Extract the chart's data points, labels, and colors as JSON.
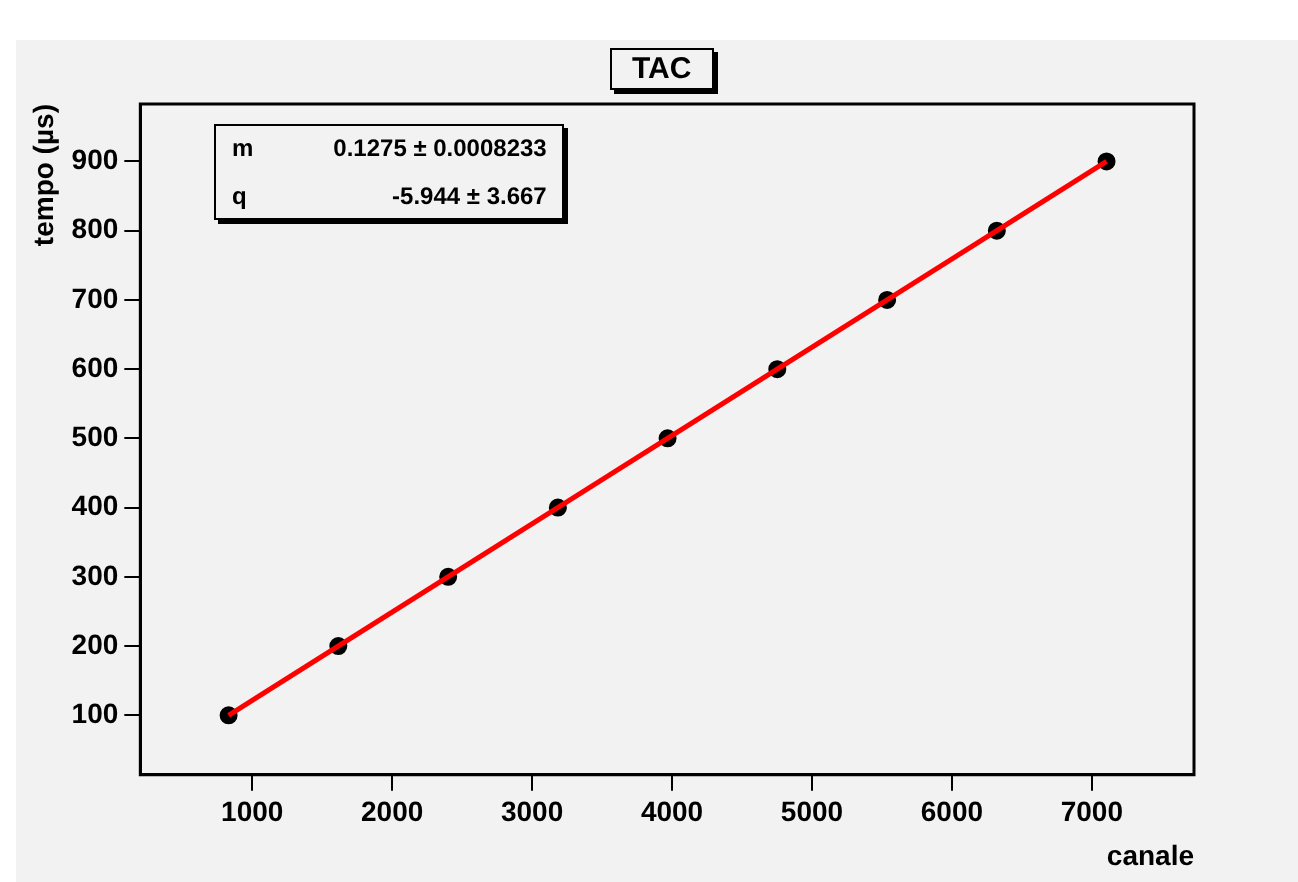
{
  "chart_data": {
    "type": "scatter",
    "title": "TAC",
    "xlabel": "canale",
    "ylabel": "tempo (µs)",
    "xlim": [
      200,
      7730
    ],
    "xticks": [
      1000,
      2000,
      3000,
      4000,
      5000,
      6000,
      7000
    ],
    "ylim": [
      14,
      983
    ],
    "yticks": [
      100,
      200,
      300,
      400,
      500,
      600,
      700,
      800,
      900
    ],
    "grid": false,
    "legend": false,
    "marker": "circle",
    "annotations": [
      "m",
      "0.1275 ± 0.0008233",
      "q",
      "-5.944 ± 3.667"
    ],
    "series": [
      {
        "type": "scatter",
        "color": "#000000",
        "x": [
          831,
          1615,
          2400,
          3184,
          3968,
          4752,
          5537,
          6321,
          7105
        ],
        "values": [
          100,
          200,
          300,
          400,
          500,
          600,
          700,
          800,
          900
        ]
      },
      {
        "type": "line",
        "color": "#ff0000",
        "marker": "none",
        "x": [
          831,
          7105
        ],
        "values": [
          100,
          900
        ]
      }
    ]
  }
}
